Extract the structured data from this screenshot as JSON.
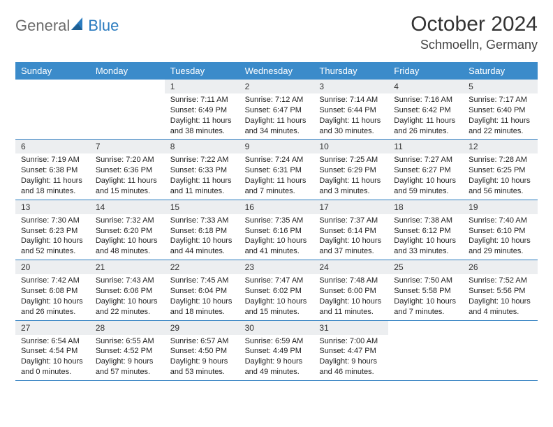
{
  "brand": {
    "word1": "General",
    "word2": "Blue"
  },
  "title": "October 2024",
  "location": "Schmoelln, Germany",
  "colors": {
    "header_bg": "#3b8bca",
    "daynum_bg": "#eceef0",
    "border": "#2a7bbf",
    "logo_gray": "#6b6b6b",
    "logo_blue": "#2a7bbf",
    "title_fontsize": 30,
    "location_fontsize": 18,
    "weekday_fontsize": 13,
    "daynum_fontsize": 12,
    "body_fontsize": 11
  },
  "weekdays": [
    "Sunday",
    "Monday",
    "Tuesday",
    "Wednesday",
    "Thursday",
    "Friday",
    "Saturday"
  ],
  "weeks": [
    [
      null,
      null,
      {
        "n": "1",
        "sr": "7:11 AM",
        "ss": "6:49 PM",
        "dl": "11 hours and 38 minutes."
      },
      {
        "n": "2",
        "sr": "7:12 AM",
        "ss": "6:47 PM",
        "dl": "11 hours and 34 minutes."
      },
      {
        "n": "3",
        "sr": "7:14 AM",
        "ss": "6:44 PM",
        "dl": "11 hours and 30 minutes."
      },
      {
        "n": "4",
        "sr": "7:16 AM",
        "ss": "6:42 PM",
        "dl": "11 hours and 26 minutes."
      },
      {
        "n": "5",
        "sr": "7:17 AM",
        "ss": "6:40 PM",
        "dl": "11 hours and 22 minutes."
      }
    ],
    [
      {
        "n": "6",
        "sr": "7:19 AM",
        "ss": "6:38 PM",
        "dl": "11 hours and 18 minutes."
      },
      {
        "n": "7",
        "sr": "7:20 AM",
        "ss": "6:36 PM",
        "dl": "11 hours and 15 minutes."
      },
      {
        "n": "8",
        "sr": "7:22 AM",
        "ss": "6:33 PM",
        "dl": "11 hours and 11 minutes."
      },
      {
        "n": "9",
        "sr": "7:24 AM",
        "ss": "6:31 PM",
        "dl": "11 hours and 7 minutes."
      },
      {
        "n": "10",
        "sr": "7:25 AM",
        "ss": "6:29 PM",
        "dl": "11 hours and 3 minutes."
      },
      {
        "n": "11",
        "sr": "7:27 AM",
        "ss": "6:27 PM",
        "dl": "10 hours and 59 minutes."
      },
      {
        "n": "12",
        "sr": "7:28 AM",
        "ss": "6:25 PM",
        "dl": "10 hours and 56 minutes."
      }
    ],
    [
      {
        "n": "13",
        "sr": "7:30 AM",
        "ss": "6:23 PM",
        "dl": "10 hours and 52 minutes."
      },
      {
        "n": "14",
        "sr": "7:32 AM",
        "ss": "6:20 PM",
        "dl": "10 hours and 48 minutes."
      },
      {
        "n": "15",
        "sr": "7:33 AM",
        "ss": "6:18 PM",
        "dl": "10 hours and 44 minutes."
      },
      {
        "n": "16",
        "sr": "7:35 AM",
        "ss": "6:16 PM",
        "dl": "10 hours and 41 minutes."
      },
      {
        "n": "17",
        "sr": "7:37 AM",
        "ss": "6:14 PM",
        "dl": "10 hours and 37 minutes."
      },
      {
        "n": "18",
        "sr": "7:38 AM",
        "ss": "6:12 PM",
        "dl": "10 hours and 33 minutes."
      },
      {
        "n": "19",
        "sr": "7:40 AM",
        "ss": "6:10 PM",
        "dl": "10 hours and 29 minutes."
      }
    ],
    [
      {
        "n": "20",
        "sr": "7:42 AM",
        "ss": "6:08 PM",
        "dl": "10 hours and 26 minutes."
      },
      {
        "n": "21",
        "sr": "7:43 AM",
        "ss": "6:06 PM",
        "dl": "10 hours and 22 minutes."
      },
      {
        "n": "22",
        "sr": "7:45 AM",
        "ss": "6:04 PM",
        "dl": "10 hours and 18 minutes."
      },
      {
        "n": "23",
        "sr": "7:47 AM",
        "ss": "6:02 PM",
        "dl": "10 hours and 15 minutes."
      },
      {
        "n": "24",
        "sr": "7:48 AM",
        "ss": "6:00 PM",
        "dl": "10 hours and 11 minutes."
      },
      {
        "n": "25",
        "sr": "7:50 AM",
        "ss": "5:58 PM",
        "dl": "10 hours and 7 minutes."
      },
      {
        "n": "26",
        "sr": "7:52 AM",
        "ss": "5:56 PM",
        "dl": "10 hours and 4 minutes."
      }
    ],
    [
      {
        "n": "27",
        "sr": "6:54 AM",
        "ss": "4:54 PM",
        "dl": "10 hours and 0 minutes."
      },
      {
        "n": "28",
        "sr": "6:55 AM",
        "ss": "4:52 PM",
        "dl": "9 hours and 57 minutes."
      },
      {
        "n": "29",
        "sr": "6:57 AM",
        "ss": "4:50 PM",
        "dl": "9 hours and 53 minutes."
      },
      {
        "n": "30",
        "sr": "6:59 AM",
        "ss": "4:49 PM",
        "dl": "9 hours and 49 minutes."
      },
      {
        "n": "31",
        "sr": "7:00 AM",
        "ss": "4:47 PM",
        "dl": "9 hours and 46 minutes."
      },
      null,
      null
    ]
  ],
  "labels": {
    "sunrise": "Sunrise:",
    "sunset": "Sunset:",
    "daylight": "Daylight:"
  }
}
